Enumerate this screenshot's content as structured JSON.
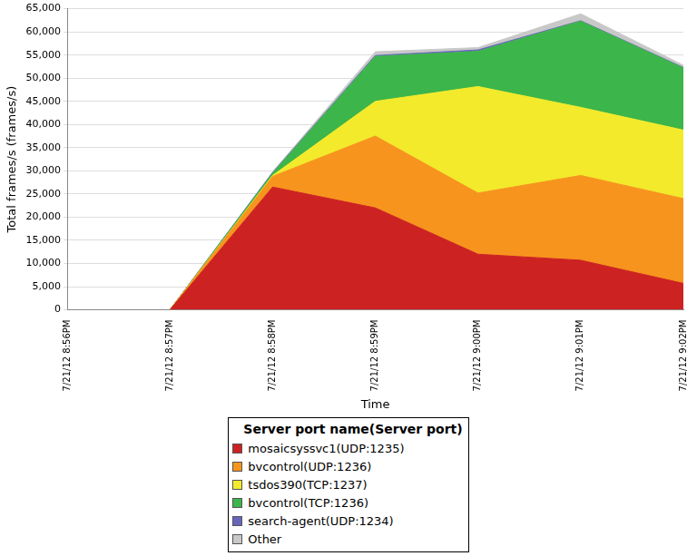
{
  "chart_data": {
    "type": "area",
    "stacked": true,
    "grid": true,
    "legend": "bottom",
    "x_label": "Time",
    "y_label": "Total frames/s (frames/s)",
    "legend_title": "Server port name(Server port)",
    "categories": [
      "7/21/12 8:56PM",
      "7/21/12 8:57PM",
      "7/21/12 8:58PM",
      "7/21/12 8:59PM",
      "7/21/12 9:00PM",
      "7/21/12 9:01PM",
      "7/21/12 9:02PM"
    ],
    "ylim": [
      0,
      65000
    ],
    "yticks": [
      0,
      {
        "value": 5000,
        "label": "5,000"
      },
      {
        "value": 10000,
        "label": "10,000"
      },
      {
        "value": 15000,
        "label": "15,000"
      },
      {
        "value": 20000,
        "label": "20,000"
      },
      {
        "value": 25000,
        "label": "25,000"
      },
      {
        "value": 30000,
        "label": "30,000"
      },
      {
        "value": 35000,
        "label": "35,000"
      },
      {
        "value": 40000,
        "label": "40,000"
      },
      {
        "value": 45000,
        "label": "45,000"
      },
      {
        "value": 50000,
        "label": "50,000"
      },
      {
        "value": 55000,
        "label": "55,000"
      },
      {
        "value": 60000,
        "label": "60,000"
      },
      {
        "value": 65000,
        "label": "65,000"
      }
    ],
    "series": [
      {
        "name": "mosaicsyssvc1(UDP:1235)",
        "color": "#cc2222",
        "values": [
          null,
          0,
          26500,
          22000,
          12000,
          10700,
          5700
        ]
      },
      {
        "name": "bvcontrol(UDP:1236)",
        "color": "#f7941d",
        "values": [
          null,
          0,
          2300,
          15500,
          13200,
          18300,
          18300
        ]
      },
      {
        "name": "tsdos390(TCP:1237)",
        "color": "#f2ea2a",
        "values": [
          null,
          0,
          200,
          7500,
          23000,
          14700,
          14800
        ]
      },
      {
        "name": "bvcontrol(TCP:1236)",
        "color": "#3cb54a",
        "values": [
          null,
          0,
          500,
          9700,
          7600,
          18600,
          13400
        ]
      },
      {
        "name": "search-agent(UDP:1234)",
        "color": "#6666bb",
        "values": [
          null,
          0,
          100,
          200,
          300,
          100,
          100
        ]
      },
      {
        "name": "Other",
        "color": "#c8c8c8",
        "values": [
          null,
          0,
          200,
          800,
          500,
          1500,
          500
        ]
      }
    ]
  }
}
